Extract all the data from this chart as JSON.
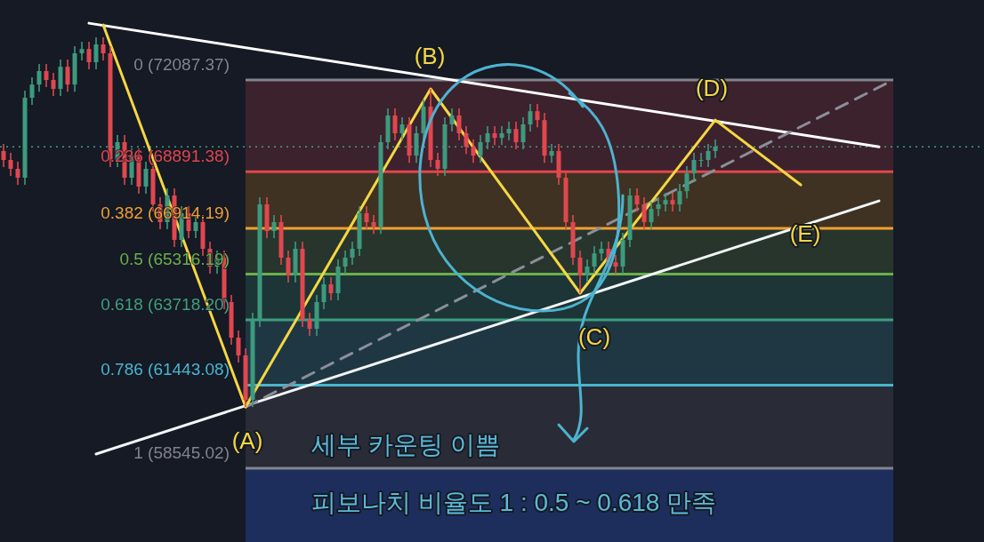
{
  "chart_data": {
    "type": "candlestick",
    "ylim": [
      55970,
      74880
    ],
    "categories": [
      null,
      null,
      null,
      null,
      null,
      null,
      null,
      null,
      null,
      null,
      null,
      null,
      null,
      null,
      null,
      null,
      null,
      null,
      null,
      null,
      null,
      null,
      null,
      null,
      null,
      null,
      null,
      null,
      null,
      null,
      null,
      null,
      null,
      null,
      null,
      null,
      null,
      null,
      null,
      null,
      null,
      null,
      null,
      null,
      null,
      null,
      null,
      null,
      null,
      null,
      null,
      null,
      null,
      null,
      null,
      null,
      null,
      null,
      null,
      null,
      null,
      null,
      null,
      null,
      null,
      null,
      null,
      null,
      null,
      null,
      null,
      null,
      null,
      null,
      null,
      null,
      null,
      null,
      null,
      null,
      null,
      null,
      null,
      null,
      null,
      null,
      null,
      null,
      null,
      null,
      null,
      null,
      null,
      null,
      null,
      null,
      null,
      null,
      null,
      null,
      null,
      null,
      null,
      null,
      null,
      null,
      null,
      null,
      null,
      null,
      null,
      null,
      null,
      null,
      null,
      null,
      null,
      null,
      null,
      null,
      null,
      null,
      null,
      null,
      null,
      null
    ],
    "ohlc": [
      [
        69610,
        69860,
        69050,
        69300
      ],
      [
        69300,
        69550,
        68740,
        68990
      ],
      [
        68990,
        69240,
        68430,
        68680
      ],
      [
        68680,
        71720,
        68430,
        71470
      ],
      [
        71470,
        72180,
        71220,
        71930
      ],
      [
        71930,
        72650,
        71680,
        72400
      ],
      [
        72400,
        72650,
        71840,
        72090
      ],
      [
        72090,
        72340,
        71530,
        71780
      ],
      [
        71780,
        72800,
        71530,
        72550
      ],
      [
        72550,
        72800,
        71680,
        71930
      ],
      [
        71930,
        73270,
        71680,
        73020
      ],
      [
        73020,
        73420,
        72770,
        73170
      ],
      [
        73170,
        73420,
        72460,
        72710
      ],
      [
        72710,
        73580,
        72460,
        73330
      ],
      [
        73330,
        73580,
        72770,
        73020
      ],
      [
        73020,
        73270,
        69050,
        69300
      ],
      [
        69300,
        70170,
        69050,
        69920
      ],
      [
        69920,
        70170,
        68430,
        68680
      ],
      [
        68680,
        69700,
        68430,
        69450
      ],
      [
        69450,
        69700,
        68120,
        68370
      ],
      [
        68370,
        69240,
        68120,
        68990
      ],
      [
        68990,
        69240,
        67500,
        67750
      ],
      [
        67750,
        68000,
        66880,
        67130
      ],
      [
        67130,
        68310,
        66880,
        68060
      ],
      [
        68060,
        68310,
        66260,
        66510
      ],
      [
        66510,
        67690,
        66260,
        67440
      ],
      [
        67440,
        67690,
        66570,
        66820
      ],
      [
        66820,
        67380,
        66570,
        67130
      ],
      [
        67130,
        67380,
        65950,
        66200
      ],
      [
        66200,
        66450,
        65330,
        65580
      ],
      [
        65580,
        66140,
        65330,
        65890
      ],
      [
        65890,
        66140,
        64090,
        64340
      ],
      [
        64340,
        64590,
        62850,
        63100
      ],
      [
        63100,
        63350,
        62230,
        62480
      ],
      [
        62480,
        62730,
        60680,
        60930
      ],
      [
        60930,
        63970,
        60680,
        63720
      ],
      [
        63720,
        68000,
        63470,
        67750
      ],
      [
        67750,
        68000,
        66570,
        66820
      ],
      [
        66820,
        67380,
        66570,
        67130
      ],
      [
        67130,
        67380,
        65640,
        65890
      ],
      [
        65890,
        66140,
        65020,
        65270
      ],
      [
        65270,
        66450,
        65020,
        66200
      ],
      [
        66200,
        66450,
        63470,
        63720
      ],
      [
        63720,
        63970,
        63160,
        63410
      ],
      [
        63410,
        64590,
        63160,
        64340
      ],
      [
        64340,
        65210,
        64090,
        64960
      ],
      [
        64960,
        65210,
        64400,
        64650
      ],
      [
        64650,
        65830,
        64400,
        65580
      ],
      [
        65580,
        66140,
        65330,
        65890
      ],
      [
        65890,
        66450,
        65640,
        66200
      ],
      [
        66200,
        67690,
        65950,
        67440
      ],
      [
        67440,
        67690,
        66880,
        67130
      ],
      [
        67130,
        67380,
        66720,
        66970
      ],
      [
        66970,
        70170,
        66720,
        69920
      ],
      [
        69920,
        71100,
        69670,
        70850
      ],
      [
        70850,
        71100,
        69980,
        70230
      ],
      [
        70230,
        70790,
        69980,
        70540
      ],
      [
        70540,
        70790,
        69200,
        69450
      ],
      [
        69450,
        70480,
        69200,
        70230
      ],
      [
        70230,
        71410,
        69980,
        71160
      ],
      [
        71160,
        71780,
        69050,
        69300
      ],
      [
        69300,
        69550,
        68740,
        68990
      ],
      [
        68990,
        70790,
        68740,
        70540
      ],
      [
        70540,
        71100,
        70290,
        70850
      ],
      [
        70850,
        71100,
        69980,
        70230
      ],
      [
        70230,
        70480,
        69510,
        69760
      ],
      [
        69760,
        70010,
        69200,
        69450
      ],
      [
        69450,
        70170,
        69200,
        69920
      ],
      [
        69920,
        70480,
        69670,
        70230
      ],
      [
        70230,
        70480,
        69820,
        70070
      ],
      [
        70070,
        70480,
        69820,
        70230
      ],
      [
        70230,
        70630,
        69980,
        70380
      ],
      [
        70380,
        70630,
        69670,
        69920
      ],
      [
        69920,
        70790,
        69670,
        70540
      ],
      [
        70540,
        71250,
        70290,
        71000
      ],
      [
        71000,
        71250,
        70440,
        70690
      ],
      [
        70690,
        70940,
        69200,
        69450
      ],
      [
        69450,
        69860,
        69200,
        69610
      ],
      [
        69610,
        69860,
        68430,
        68680
      ],
      [
        68680,
        68930,
        66880,
        67130
      ],
      [
        67130,
        67380,
        65640,
        65890
      ],
      [
        65890,
        66140,
        64650,
        65270
      ],
      [
        65270,
        65830,
        65020,
        65580
      ],
      [
        65580,
        66290,
        65330,
        66040
      ],
      [
        66040,
        66450,
        65790,
        66200
      ],
      [
        66200,
        66450,
        65480,
        65730
      ],
      [
        65730,
        65980,
        65330,
        65580
      ],
      [
        65580,
        66760,
        65330,
        66510
      ],
      [
        66510,
        68310,
        66260,
        68060
      ],
      [
        68060,
        68310,
        67500,
        67750
      ],
      [
        67750,
        68000,
        66880,
        67130
      ],
      [
        67130,
        67840,
        66880,
        67590
      ],
      [
        67590,
        68000,
        67340,
        67750
      ],
      [
        67750,
        68150,
        67500,
        67900
      ],
      [
        67900,
        68150,
        67500,
        67750
      ],
      [
        67750,
        68460,
        67500,
        68210
      ],
      [
        68210,
        69080,
        67960,
        68830
      ],
      [
        68830,
        69550,
        68580,
        69300
      ],
      [
        69300,
        69550,
        69050,
        69300
      ],
      [
        69300,
        69860,
        69050,
        69610
      ],
      [
        69610,
        70010,
        69360,
        69760
      ],
      null,
      null,
      null,
      null,
      null,
      null,
      null,
      null,
      null,
      null,
      null,
      null,
      null,
      null,
      null,
      null,
      null,
      null,
      null,
      null,
      null,
      null,
      null,
      null,
      null
    ],
    "series": [
      {
        "type": "line",
        "color": "#ffffff",
        "values": [
          null,
          null,
          null,
          null,
          null,
          null,
          null,
          null,
          null,
          null,
          null,
          null,
          74070,
          null,
          null,
          null,
          null,
          null,
          null,
          null,
          null,
          null,
          null,
          null,
          null,
          null,
          null,
          null,
          null,
          null,
          null,
          null,
          null,
          null,
          null,
          null,
          null,
          null,
          null,
          null,
          null,
          null,
          null,
          null,
          null,
          null,
          null,
          null,
          null,
          null,
          null,
          null,
          null,
          null,
          null,
          null,
          null,
          null,
          null,
          null,
          null,
          null,
          null,
          null,
          null,
          null,
          null,
          null,
          null,
          null,
          null,
          null,
          null,
          null,
          null,
          null,
          null,
          null,
          null,
          null,
          null,
          null,
          null,
          null,
          null,
          null,
          null,
          null,
          null,
          null,
          null,
          null,
          null,
          null,
          null,
          null,
          null,
          null,
          null,
          null,
          null,
          null,
          null,
          null,
          null,
          null,
          null,
          null,
          null,
          null,
          null,
          null,
          null,
          null,
          null,
          null,
          null,
          null,
          null,
          null,
          null,
          null,
          null,
          69760,
          null,
          null
        ]
      },
      {
        "type": "line",
        "color": "#f2f6f8",
        "values": [
          null,
          null,
          null,
          null,
          null,
          null,
          null,
          null,
          null,
          null,
          null,
          null,
          null,
          59040,
          null,
          null,
          null,
          null,
          null,
          null,
          null,
          null,
          null,
          null,
          null,
          null,
          null,
          null,
          null,
          null,
          null,
          null,
          null,
          null,
          null,
          null,
          null,
          null,
          null,
          null,
          null,
          null,
          null,
          null,
          null,
          null,
          null,
          null,
          null,
          null,
          null,
          null,
          null,
          null,
          null,
          null,
          null,
          null,
          null,
          null,
          null,
          null,
          null,
          null,
          null,
          null,
          null,
          null,
          null,
          null,
          null,
          null,
          null,
          null,
          null,
          null,
          null,
          null,
          null,
          null,
          null,
          null,
          null,
          null,
          null,
          null,
          null,
          null,
          null,
          null,
          null,
          null,
          null,
          null,
          null,
          null,
          null,
          null,
          null,
          null,
          null,
          null,
          null,
          null,
          null,
          null,
          null,
          null,
          null,
          null,
          null,
          null,
          null,
          null,
          null,
          null,
          null,
          null,
          null,
          null,
          null,
          null,
          null,
          67870,
          null,
          null
        ]
      },
      {
        "type": "line",
        "color": "#8a8f99",
        "line_style": "dashed",
        "values": [
          null,
          null,
          null,
          null,
          null,
          null,
          null,
          null,
          null,
          null,
          null,
          null,
          null,
          null,
          null,
          null,
          null,
          null,
          null,
          null,
          null,
          null,
          null,
          null,
          null,
          null,
          null,
          null,
          null,
          null,
          null,
          null,
          null,
          null,
          60680,
          null,
          null,
          null,
          null,
          null,
          null,
          null,
          null,
          null,
          null,
          null,
          null,
          null,
          null,
          null,
          null,
          null,
          null,
          null,
          null,
          null,
          null,
          null,
          null,
          null,
          null,
          null,
          null,
          null,
          null,
          null,
          null,
          null,
          null,
          null,
          null,
          null,
          null,
          null,
          null,
          null,
          null,
          null,
          null,
          null,
          null,
          null,
          null,
          null,
          null,
          null,
          null,
          null,
          null,
          null,
          null,
          null,
          null,
          null,
          null,
          null,
          null,
          null,
          null,
          null,
          null,
          null,
          null,
          null,
          null,
          null,
          null,
          null,
          null,
          null,
          null,
          null,
          null,
          null,
          null,
          null,
          null,
          null,
          null,
          null,
          null,
          null,
          null,
          null,
          null,
          72090
        ]
      },
      {
        "type": "line",
        "color": "#f5d742",
        "values": [
          null,
          null,
          null,
          null,
          null,
          null,
          null,
          null,
          null,
          null,
          null,
          null,
          null,
          null,
          74010,
          null,
          null,
          null,
          null,
          null,
          null,
          null,
          null,
          null,
          null,
          null,
          null,
          null,
          null,
          null,
          null,
          null,
          null,
          null,
          60680,
          null,
          null,
          null,
          null,
          null,
          null,
          null,
          null,
          null,
          null,
          null,
          null,
          null,
          null,
          null,
          null,
          null,
          null,
          null,
          null,
          null,
          null,
          null,
          null,
          null,
          71780,
          null,
          null,
          null,
          null,
          null,
          null,
          null,
          null,
          null,
          null,
          null,
          null,
          null,
          null,
          null,
          null,
          null,
          null,
          null,
          null,
          64650,
          null,
          null,
          null,
          null,
          null,
          null,
          null,
          null,
          null,
          null,
          null,
          null,
          null,
          null,
          null,
          null,
          null,
          null,
          70690,
          null,
          null,
          null,
          null,
          null,
          null,
          null,
          null,
          null,
          null,
          null,
          68430,
          null,
          null,
          null,
          null,
          null,
          null,
          null,
          null,
          null,
          null,
          null,
          null,
          null
        ]
      }
    ],
    "bands": [
      {
        "axis": "y",
        "from": 72087.37,
        "to": 68891.38,
        "color": "#3c222d"
      },
      {
        "axis": "y",
        "from": 68891.38,
        "to": 66914.19,
        "color": "#3f3222"
      },
      {
        "axis": "y",
        "from": 66914.19,
        "to": 65316.19,
        "color": "#28352d"
      },
      {
        "axis": "y",
        "from": 65316.19,
        "to": 63718.2,
        "color": "#1d3536"
      },
      {
        "axis": "y",
        "from": 63718.2,
        "to": 61443.08,
        "color": "#1f3743"
      },
      {
        "axis": "y",
        "from": 61443.08,
        "to": 58545.02,
        "color": "#292c36"
      },
      {
        "axis": "y",
        "from": 58545.02,
        "to": 55970,
        "color": "#1e2e5c"
      }
    ],
    "ref_lines": [
      {
        "axis": "y",
        "value": 72087.37,
        "label": "0 (72087.37)",
        "color": "#82848d"
      },
      {
        "axis": "y",
        "value": 68891.38,
        "label": "0.236 (68891.38)",
        "color": "#e2454d"
      },
      {
        "axis": "y",
        "value": 66914.19,
        "label": "0.382 (66914.19)",
        "color": "#f0a030"
      },
      {
        "axis": "y",
        "value": 65316.19,
        "label": "0.5 (65316.19)",
        "color": "#6ab04c"
      },
      {
        "axis": "y",
        "value": 63718.2,
        "label": "0.618 (63718.20)",
        "color": "#3f9f80"
      },
      {
        "axis": "y",
        "value": 61443.08,
        "label": "0.786 (61443.08)",
        "color": "#49b6cf"
      },
      {
        "axis": "y",
        "value": 58545.02,
        "label": "1 (58545.02)",
        "color": "#82848d"
      },
      {
        "axis": "y",
        "value": 69760,
        "color": "#3f9f80",
        "line_style": "dotted"
      }
    ],
    "annotations": [
      "(A)",
      "(B)",
      "(C)",
      "(D)",
      "(E)",
      "세부 카운팅 이쁨",
      "피보나치 비율도 1 : 0.5 ~ 0.618 만족"
    ]
  }
}
